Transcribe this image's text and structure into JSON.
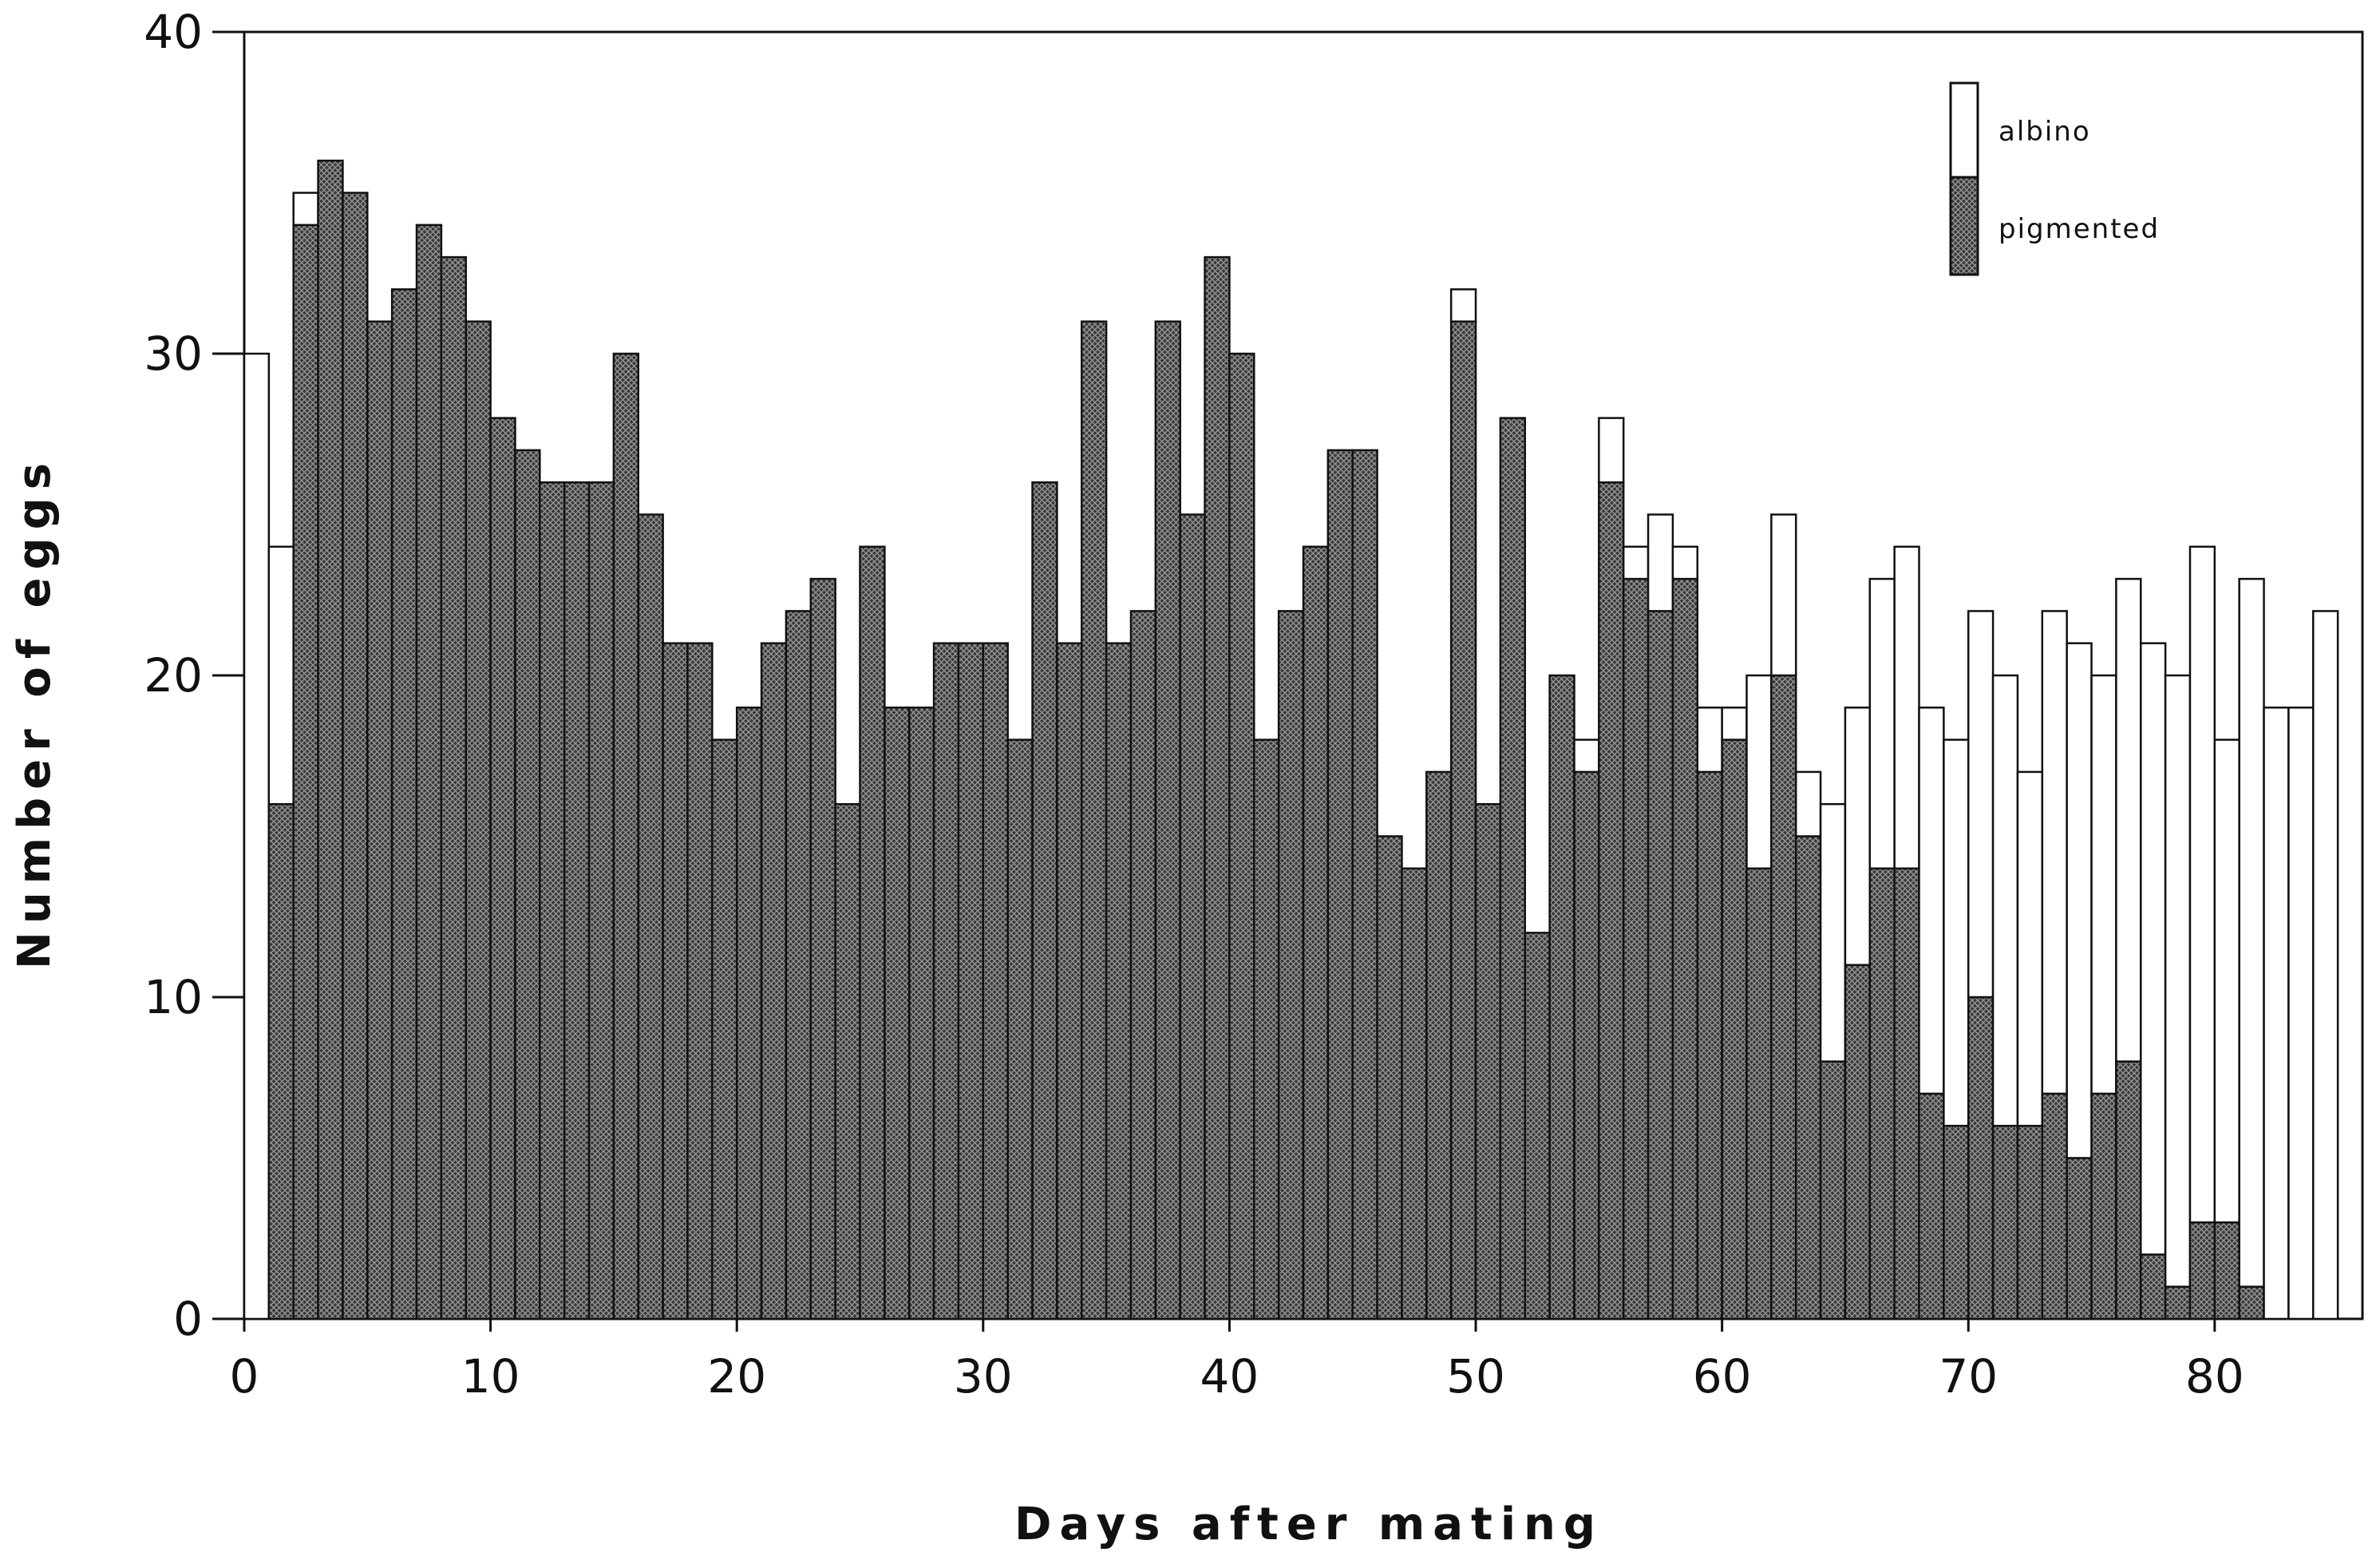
{
  "chart_data": {
    "type": "bar",
    "stacked": true,
    "title": "",
    "xlabel": "Days after mating",
    "ylabel": "Number of eggs",
    "xlim": [
      0,
      86
    ],
    "ylim": [
      0,
      40
    ],
    "x_ticks": [
      "0",
      "10",
      "20",
      "30",
      "40",
      "50",
      "60",
      "70",
      "80"
    ],
    "y_ticks": [
      "0",
      "10",
      "20",
      "30",
      "40"
    ],
    "grid": false,
    "legend_position": "top-right",
    "x": [
      0,
      1,
      2,
      3,
      4,
      5,
      6,
      7,
      8,
      9,
      10,
      11,
      12,
      13,
      14,
      15,
      16,
      17,
      18,
      19,
      20,
      21,
      22,
      23,
      24,
      25,
      26,
      27,
      28,
      29,
      30,
      31,
      32,
      33,
      34,
      35,
      36,
      37,
      38,
      39,
      40,
      41,
      42,
      43,
      44,
      45,
      46,
      47,
      48,
      49,
      50,
      51,
      52,
      53,
      54,
      55,
      56,
      57,
      58,
      59,
      60,
      61,
      62,
      63,
      64,
      65,
      66,
      67,
      68,
      69,
      70,
      71,
      72,
      73,
      74,
      75,
      76,
      77,
      78,
      79,
      80,
      81,
      82,
      83,
      84,
      85
    ],
    "series": [
      {
        "name": "pigmented",
        "color": "#2b2b2b",
        "pattern": "crosshatch",
        "values": [
          0,
          16,
          34,
          36,
          35,
          31,
          32,
          34,
          33,
          31,
          28,
          27,
          26,
          26,
          26,
          30,
          25,
          21,
          21,
          18,
          19,
          21,
          22,
          23,
          16,
          24,
          19,
          19,
          21,
          21,
          21,
          18,
          26,
          21,
          31,
          21,
          22,
          31,
          25,
          33,
          30,
          18,
          22,
          24,
          27,
          27,
          15,
          14,
          17,
          31,
          16,
          28,
          12,
          20,
          17,
          26,
          23,
          22,
          23,
          17,
          18,
          14,
          20,
          15,
          8,
          11,
          14,
          14,
          7,
          6,
          10,
          6,
          6,
          7,
          5,
          7,
          8,
          2,
          1,
          3,
          3,
          1,
          0,
          0,
          0,
          0
        ]
      },
      {
        "name": "albino",
        "color": "#ffffff",
        "values": [
          30,
          8,
          1,
          0,
          0,
          0,
          0,
          0,
          0,
          0,
          0,
          0,
          0,
          0,
          0,
          0,
          0,
          0,
          0,
          0,
          0,
          0,
          0,
          0,
          0,
          0,
          0,
          0,
          0,
          0,
          0,
          0,
          0,
          0,
          0,
          0,
          0,
          0,
          0,
          0,
          0,
          0,
          0,
          0,
          0,
          0,
          0,
          0,
          0,
          1,
          0,
          0,
          0,
          0,
          1,
          2,
          1,
          3,
          1,
          2,
          1,
          6,
          5,
          2,
          8,
          8,
          9,
          10,
          12,
          12,
          12,
          14,
          11,
          15,
          16,
          13,
          15,
          19,
          19,
          21,
          15,
          22,
          19,
          19,
          22,
          0
        ]
      }
    ]
  }
}
